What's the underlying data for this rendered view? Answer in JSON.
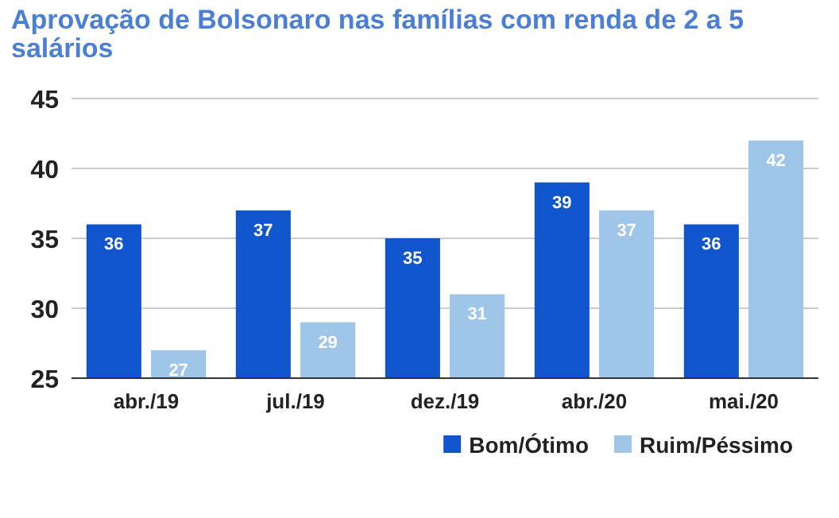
{
  "chart_data": {
    "type": "bar",
    "title": "Aprovação de Bolsonaro nas famílias com renda de 2 a 5 salários",
    "categories": [
      "abr./19",
      "jul./19",
      "dez./19",
      "abr./20",
      "mai./20"
    ],
    "series": [
      {
        "name": "Bom/Ótimo",
        "color": "#1155cc",
        "values": [
          36,
          37,
          35,
          39,
          36
        ]
      },
      {
        "name": "Ruim/Péssimo",
        "color": "#9fc5e8",
        "values": [
          27,
          29,
          31,
          37,
          42
        ]
      }
    ],
    "ylim": [
      25,
      45
    ],
    "yticks": [
      25,
      30,
      35,
      40,
      45
    ],
    "grid": "y",
    "legend": "bottom right",
    "data_labels": true
  }
}
